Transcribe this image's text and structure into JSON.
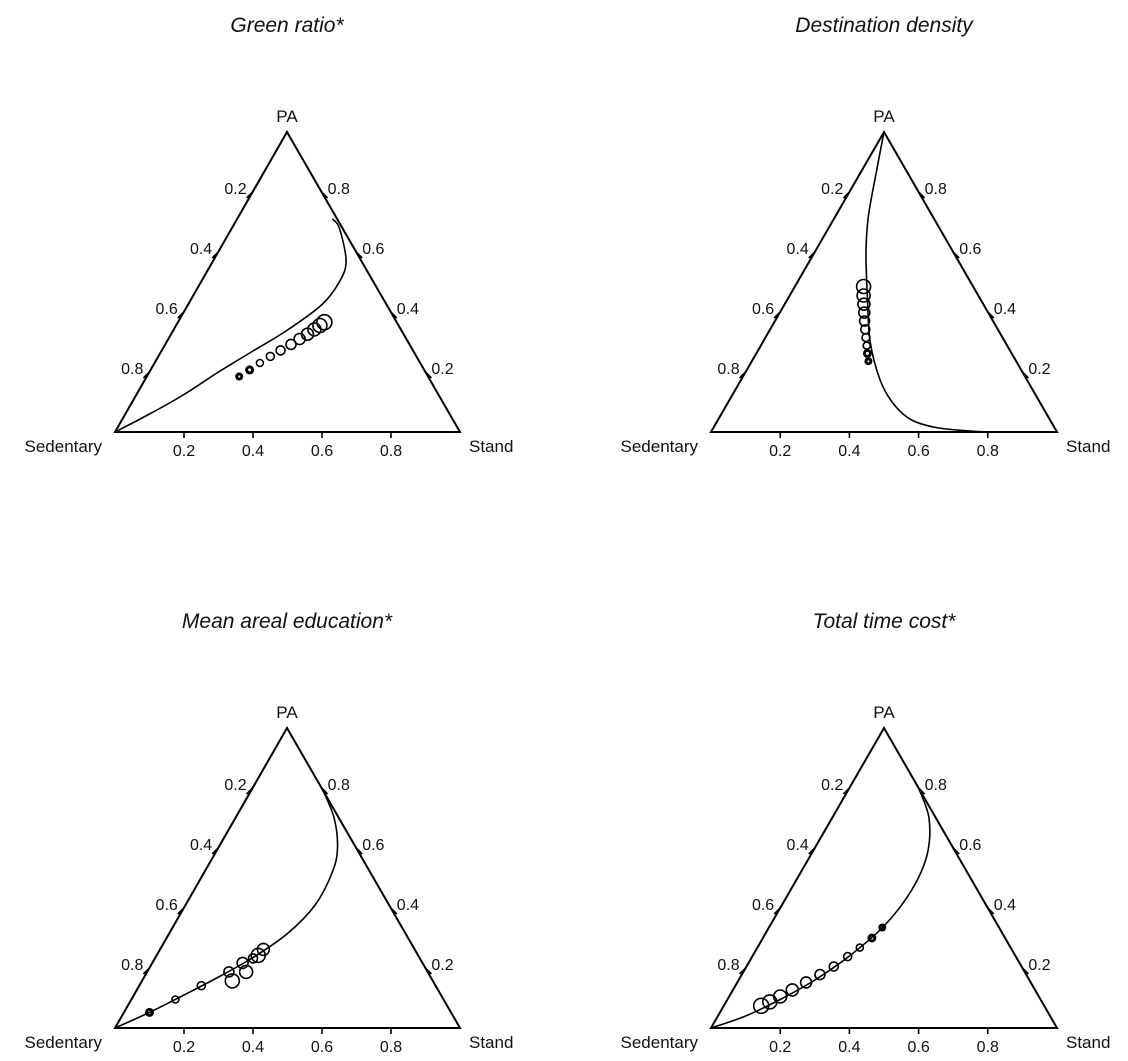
{
  "chart_data": [
    {
      "type": "ternary",
      "title": "Green ratio*",
      "vertex_labels": {
        "top": "PA",
        "left": "Sedentary",
        "right": "Stand"
      },
      "ticks": [
        0.2,
        0.4,
        0.6,
        0.8
      ],
      "curve": [
        [
          0,
          0
        ],
        [
          0.1,
          0.06
        ],
        [
          0.2,
          0.125
        ],
        [
          0.3,
          0.2
        ],
        [
          0.4,
          0.27
        ],
        [
          0.5,
          0.34
        ],
        [
          0.6,
          0.425
        ],
        [
          0.65,
          0.5
        ],
        [
          0.67,
          0.57
        ],
        [
          0.65,
          0.68
        ],
        [
          0.63,
          0.71
        ]
      ],
      "markers": [
        {
          "x": 0.36,
          "y": 0.185,
          "r": 2.5
        },
        {
          "x": 0.39,
          "y": 0.207,
          "r": 3
        },
        {
          "x": 0.42,
          "y": 0.23,
          "r": 3.5
        },
        {
          "x": 0.45,
          "y": 0.252,
          "r": 4
        },
        {
          "x": 0.48,
          "y": 0.272,
          "r": 4.5
        },
        {
          "x": 0.51,
          "y": 0.292,
          "r": 5
        },
        {
          "x": 0.535,
          "y": 0.31,
          "r": 5.5
        },
        {
          "x": 0.558,
          "y": 0.326,
          "r": 6
        },
        {
          "x": 0.578,
          "y": 0.342,
          "r": 6.5
        },
        {
          "x": 0.594,
          "y": 0.355,
          "r": 7
        },
        {
          "x": 0.607,
          "y": 0.366,
          "r": 7.5
        }
      ]
    },
    {
      "type": "ternary",
      "title": "Destination density",
      "vertex_labels": {
        "top": "PA",
        "left": "Sedentary",
        "right": "Stand"
      },
      "ticks": [
        0.2,
        0.4,
        0.6,
        0.8
      ],
      "curve": [
        [
          0.5,
          1
        ],
        [
          0.48,
          0.88
        ],
        [
          0.455,
          0.72
        ],
        [
          0.448,
          0.6
        ],
        [
          0.452,
          0.45
        ],
        [
          0.46,
          0.3
        ],
        [
          0.49,
          0.17
        ],
        [
          0.53,
          0.09
        ],
        [
          0.58,
          0.04
        ],
        [
          0.65,
          0.015
        ],
        [
          0.75,
          0.003
        ],
        [
          0.8,
          0
        ]
      ],
      "markers": [
        {
          "x": 0.455,
          "y": 0.236,
          "r": 2.5
        },
        {
          "x": 0.452,
          "y": 0.262,
          "r": 3
        },
        {
          "x": 0.45,
          "y": 0.288,
          "r": 3.5
        },
        {
          "x": 0.448,
          "y": 0.315,
          "r": 4
        },
        {
          "x": 0.446,
          "y": 0.342,
          "r": 4.5
        },
        {
          "x": 0.444,
          "y": 0.37,
          "r": 5
        },
        {
          "x": 0.443,
          "y": 0.398,
          "r": 5.5
        },
        {
          "x": 0.442,
          "y": 0.426,
          "r": 6
        },
        {
          "x": 0.441,
          "y": 0.455,
          "r": 6.5
        },
        {
          "x": 0.441,
          "y": 0.485,
          "r": 7
        }
      ]
    },
    {
      "type": "ternary",
      "title": "Mean areal education*",
      "vertex_labels": {
        "top": "PA",
        "left": "Sedentary",
        "right": "Stand"
      },
      "ticks": [
        0.2,
        0.4,
        0.6,
        0.8
      ],
      "curve": [
        [
          0,
          0
        ],
        [
          0.1,
          0.052
        ],
        [
          0.2,
          0.11
        ],
        [
          0.3,
          0.17
        ],
        [
          0.4,
          0.235
        ],
        [
          0.5,
          0.315
        ],
        [
          0.58,
          0.41
        ],
        [
          0.63,
          0.52
        ],
        [
          0.645,
          0.6
        ],
        [
          0.635,
          0.7
        ],
        [
          0.6,
          0.8
        ]
      ],
      "markers": [
        {
          "x": 0.1,
          "y": 0.052,
          "r": 3
        },
        {
          "x": 0.175,
          "y": 0.095,
          "r": 3.5
        },
        {
          "x": 0.25,
          "y": 0.141,
          "r": 4
        },
        {
          "x": 0.33,
          "y": 0.187,
          "r": 5
        },
        {
          "x": 0.37,
          "y": 0.217,
          "r": 5.5
        },
        {
          "x": 0.34,
          "y": 0.157,
          "r": 7
        },
        {
          "x": 0.38,
          "y": 0.187,
          "r": 6.5
        },
        {
          "x": 0.4,
          "y": 0.232,
          "r": 4.5
        },
        {
          "x": 0.415,
          "y": 0.242,
          "r": 7
        },
        {
          "x": 0.43,
          "y": 0.262,
          "r": 6
        }
      ]
    },
    {
      "type": "ternary",
      "title": "Total time cost*",
      "vertex_labels": {
        "top": "PA",
        "left": "Sedentary",
        "right": "Stand"
      },
      "ticks": [
        0.2,
        0.4,
        0.6,
        0.8
      ],
      "curve": [
        [
          0,
          0
        ],
        [
          0.1,
          0.04
        ],
        [
          0.2,
          0.095
        ],
        [
          0.3,
          0.16
        ],
        [
          0.4,
          0.24
        ],
        [
          0.5,
          0.34
        ],
        [
          0.58,
          0.46
        ],
        [
          0.625,
          0.58
        ],
        [
          0.63,
          0.7
        ],
        [
          0.6,
          0.8
        ]
      ],
      "markers": [
        {
          "x": 0.495,
          "y": 0.335,
          "r": 2.5
        },
        {
          "x": 0.465,
          "y": 0.3,
          "r": 3
        },
        {
          "x": 0.43,
          "y": 0.268,
          "r": 3.5
        },
        {
          "x": 0.395,
          "y": 0.238,
          "r": 4
        },
        {
          "x": 0.355,
          "y": 0.205,
          "r": 4.5
        },
        {
          "x": 0.315,
          "y": 0.178,
          "r": 5
        },
        {
          "x": 0.275,
          "y": 0.152,
          "r": 5.5
        },
        {
          "x": 0.235,
          "y": 0.127,
          "r": 6
        },
        {
          "x": 0.2,
          "y": 0.105,
          "r": 6.5
        },
        {
          "x": 0.17,
          "y": 0.087,
          "r": 7
        },
        {
          "x": 0.145,
          "y": 0.074,
          "r": 7.5
        }
      ]
    }
  ]
}
